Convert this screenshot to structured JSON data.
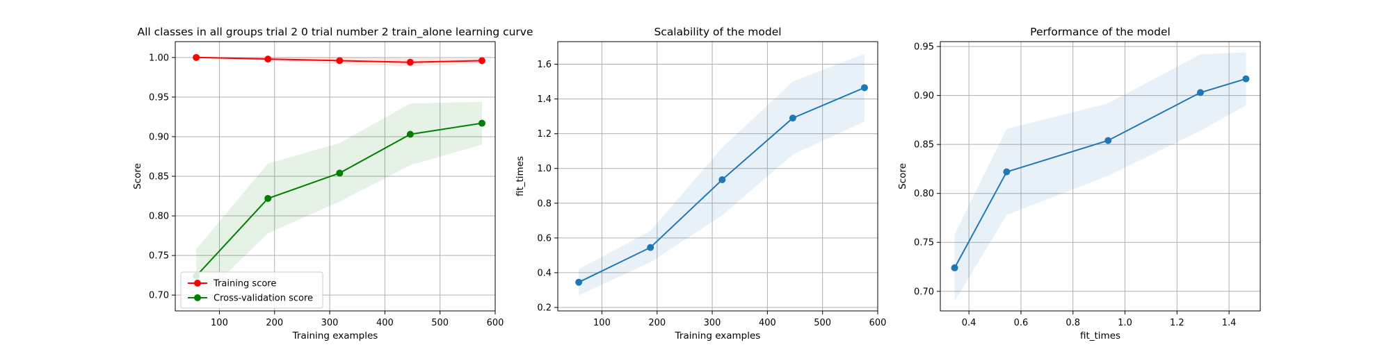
{
  "chart_data": [
    {
      "type": "line",
      "title": "All classes in all groups trial 2 0 trial number 2 train_alone learning curve",
      "xlabel": "Training examples",
      "ylabel": "Score",
      "xlim": [
        20,
        600
      ],
      "ylim": [
        0.68,
        1.02
      ],
      "xticks": [
        100,
        200,
        300,
        400,
        500,
        600
      ],
      "yticks": [
        0.7,
        0.75,
        0.8,
        0.85,
        0.9,
        0.95,
        1.0
      ],
      "ytick_decimals": 2,
      "grid": true,
      "legend_position": "lower-left",
      "x": [
        58,
        188,
        318,
        446,
        576
      ],
      "series": [
        {
          "name": "Training score",
          "color": "#ff0000",
          "band_color": "#ff0000",
          "values": [
            1.0,
            0.998,
            0.996,
            0.994,
            0.996
          ],
          "lower": [
            1.0,
            0.996,
            0.992,
            0.989,
            0.993
          ],
          "upper": [
            1.0,
            1.0,
            1.0,
            0.999,
            0.999
          ]
        },
        {
          "name": "Cross-validation score",
          "color": "#008000",
          "band_color": "#008000",
          "values": [
            0.724,
            0.822,
            0.854,
            0.903,
            0.917
          ],
          "lower": [
            0.69,
            0.778,
            0.818,
            0.864,
            0.89
          ],
          "upper": [
            0.758,
            0.866,
            0.892,
            0.942,
            0.944
          ]
        }
      ]
    },
    {
      "type": "line",
      "title": "Scalability of the model",
      "xlabel": "Training examples",
      "ylabel": "fit_times",
      "xlim": [
        20,
        600
      ],
      "ylim": [
        0.18,
        1.73
      ],
      "xticks": [
        100,
        200,
        300,
        400,
        500,
        600
      ],
      "yticks": [
        0.2,
        0.4,
        0.6,
        0.8,
        1.0,
        1.2,
        1.4,
        1.6
      ],
      "ytick_decimals": 1,
      "grid": true,
      "x": [
        58,
        188,
        318,
        446,
        576
      ],
      "series": [
        {
          "color": "#1f77b4",
          "band_color": "#1f77b4",
          "values": [
            0.345,
            0.545,
            0.935,
            1.29,
            1.465
          ],
          "lower": [
            0.27,
            0.46,
            0.73,
            1.08,
            1.27
          ],
          "upper": [
            0.42,
            0.64,
            1.12,
            1.5,
            1.66
          ]
        }
      ]
    },
    {
      "type": "line",
      "title": "Performance of the model",
      "xlabel": "fit_times",
      "ylabel": "Score",
      "xlim": [
        0.29,
        1.52
      ],
      "ylim": [
        0.68,
        0.955
      ],
      "xticks": [
        0.4,
        0.6,
        0.8,
        1.0,
        1.2,
        1.4
      ],
      "xtick_decimals": 1,
      "yticks": [
        0.7,
        0.75,
        0.8,
        0.85,
        0.9,
        0.95
      ],
      "ytick_decimals": 2,
      "grid": true,
      "x": [
        0.345,
        0.545,
        0.935,
        1.29,
        1.465
      ],
      "series": [
        {
          "color": "#1f77b4",
          "band_color": "#1f77b4",
          "values": [
            0.724,
            0.822,
            0.854,
            0.903,
            0.917
          ],
          "lower": [
            0.69,
            0.778,
            0.818,
            0.864,
            0.89
          ],
          "upper": [
            0.758,
            0.866,
            0.892,
            0.942,
            0.944
          ]
        }
      ]
    }
  ]
}
